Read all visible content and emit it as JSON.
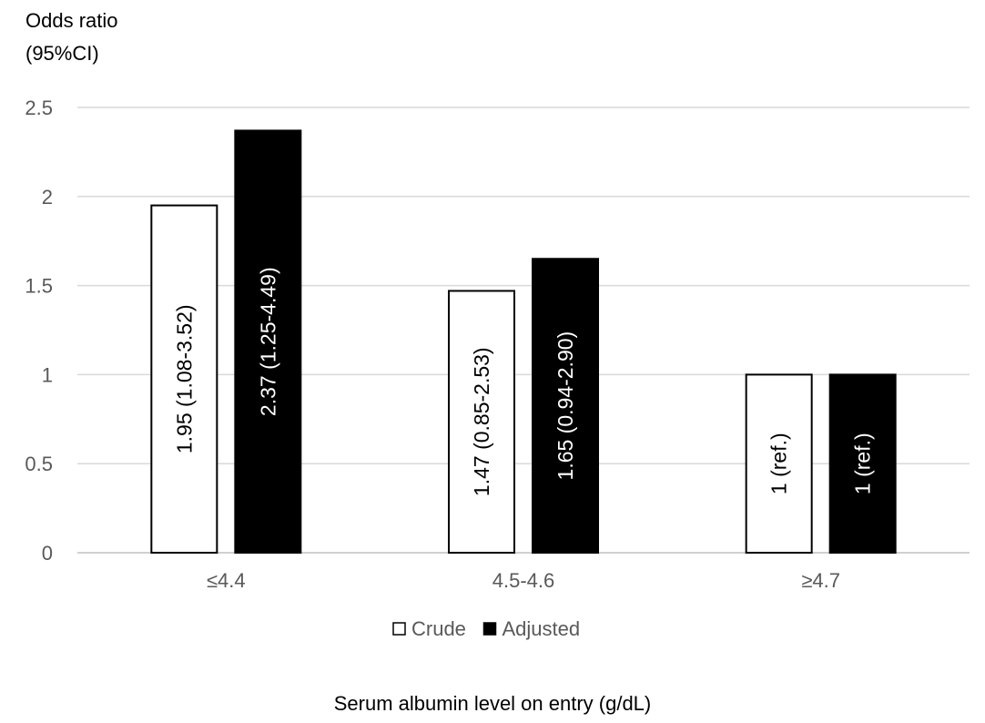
{
  "chart_data": {
    "type": "bar",
    "ylabel_line1": "Odds ratio",
    "ylabel_line2": "(95%CI)",
    "xlabel": "Serum albumin level on entry (g/dL)",
    "categories": [
      "≤4.4",
      "4.5-4.6",
      "≥4.7"
    ],
    "ylim": [
      0,
      2.5
    ],
    "yticks": [
      0,
      0.5,
      1,
      1.5,
      2,
      2.5
    ],
    "ytick_labels": [
      "0",
      "0.5",
      "1",
      "1.5",
      "2",
      "2.5"
    ],
    "grid": true,
    "legend_position": "bottom",
    "series": [
      {
        "name": "Crude",
        "values": [
          1.95,
          1.47,
          1
        ],
        "labels": [
          "1.95 (1.08-3.52)",
          "1.47 (0.85-2.53)",
          "1 (ref.)"
        ],
        "fill": "#ffffff",
        "stroke": "#000000",
        "label_color": "#000000"
      },
      {
        "name": "Adjusted",
        "values": [
          2.37,
          1.65,
          1
        ],
        "labels": [
          "2.37 (1.25-4.49)",
          "1.65 (0.94-2.90)",
          "1 (ref.)"
        ],
        "fill": "#000000",
        "stroke": "#000000",
        "label_color": "#ffffff"
      }
    ]
  }
}
